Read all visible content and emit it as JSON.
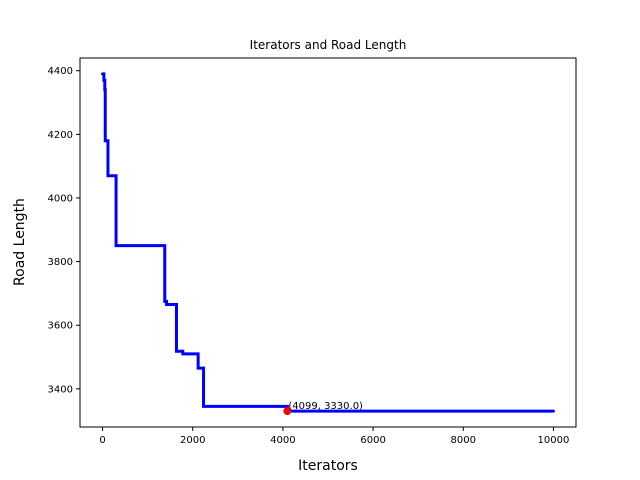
{
  "chart_data": {
    "type": "line",
    "title": "Iterators and Road Length",
    "xlabel": "Iterators",
    "ylabel": "Road Length",
    "xlim": [
      -500,
      10500
    ],
    "ylim": [
      3280,
      4440
    ],
    "xticks": [
      0,
      2000,
      4000,
      6000,
      8000,
      10000
    ],
    "yticks": [
      3400,
      3600,
      3800,
      4000,
      4200,
      4400
    ],
    "grid": false,
    "series": [
      {
        "color": "#0000ff",
        "x": [
          0,
          30,
          30,
          50,
          50,
          60,
          60,
          80,
          80,
          120,
          120,
          300,
          300,
          1380,
          1380,
          1420,
          1420,
          1640,
          1640,
          1780,
          1780,
          2120,
          2120,
          2240,
          2240,
          4099,
          4099,
          10000
        ],
        "y": [
          4390,
          4390,
          4370,
          4370,
          4340,
          4340,
          4180,
          4180,
          4180,
          4180,
          4070,
          4070,
          3850,
          3850,
          3675,
          3675,
          3665,
          3665,
          3518,
          3518,
          3510,
          3510,
          3465,
          3465,
          3345,
          3345,
          3330,
          3330
        ]
      }
    ],
    "annotations": [
      {
        "x": 4099,
        "y": 3330,
        "text": "(4099, 3330.0)",
        "marker_color": "#ff0000"
      }
    ]
  }
}
